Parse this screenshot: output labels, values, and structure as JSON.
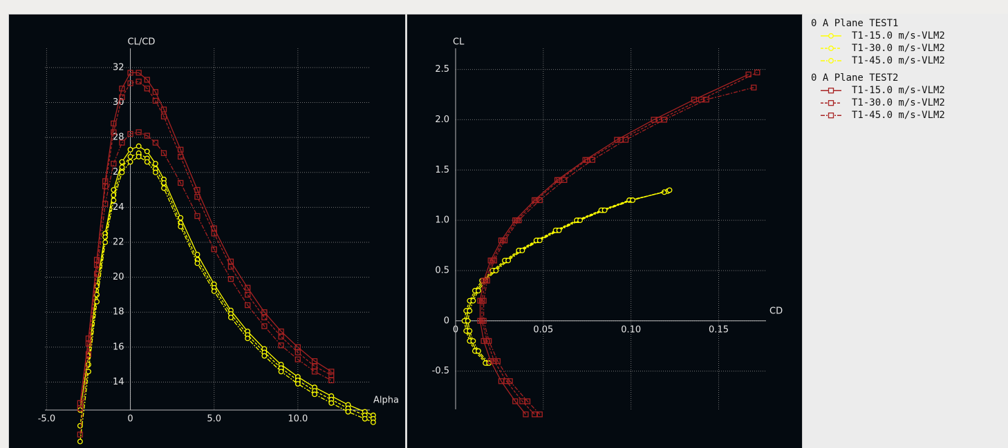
{
  "chart_data": [
    {
      "type": "line",
      "x_label": "Alpha",
      "y_label": "CL/CD",
      "x": [
        -3,
        -2.5,
        -2,
        -1.5,
        -1,
        -0.5,
        0,
        0.5,
        1,
        1.5,
        2,
        3,
        4,
        5,
        6,
        7,
        8,
        9,
        10,
        11,
        12,
        13,
        14,
        14.5
      ],
      "xlim": [
        -5.1,
        14.3
      ],
      "ylim": [
        12.4,
        33.1
      ],
      "xticks": [
        {
          "value": -5,
          "label": "-5.0"
        },
        0,
        {
          "value": 5,
          "label": "5.0"
        },
        {
          "value": 10,
          "label": "10.0"
        }
      ],
      "yticks": [
        14,
        16,
        18,
        20,
        22,
        24,
        26,
        28,
        30,
        32
      ],
      "grid": true,
      "series": [
        {
          "group": "0 A Plane TEST1",
          "name": "T1-15.0 m/s-VLM2",
          "color": "#ffff00",
          "dash": "solid",
          "marker": "circle",
          "values": [
            12.4,
            15.5,
            19.5,
            22.5,
            25.0,
            26.6,
            27.3,
            27.5,
            27.2,
            26.5,
            25.6,
            23.4,
            21.3,
            19.6,
            18.1,
            16.9,
            15.9,
            15.0,
            14.3,
            13.7,
            13.2,
            12.7,
            12.3,
            12.1
          ]
        },
        {
          "group": "0 A Plane TEST1",
          "name": "T1-30.0 m/s-VLM2",
          "color": "#ffff00",
          "dash": "dash",
          "marker": "circle",
          "values": [
            11.5,
            15.0,
            19.0,
            22.3,
            24.7,
            26.3,
            26.9,
            27.1,
            26.8,
            26.2,
            25.4,
            23.1,
            21.0,
            19.4,
            17.9,
            16.7,
            15.7,
            14.8,
            14.1,
            13.5,
            13.0,
            12.5,
            12.1,
            11.9
          ]
        },
        {
          "group": "0 A Plane TEST1",
          "name": "T1-45.0 m/s-VLM2",
          "color": "#ffff00",
          "dash": "dashdot",
          "marker": "circle",
          "values": [
            10.6,
            14.6,
            18.6,
            22.0,
            24.4,
            26.0,
            26.6,
            26.9,
            26.6,
            26.0,
            25.1,
            22.9,
            20.8,
            19.2,
            17.7,
            16.5,
            15.5,
            14.6,
            13.9,
            13.3,
            12.8,
            12.3,
            11.9,
            11.7
          ]
        },
        {
          "group": "0 A Plane TEST2",
          "name": "T1-15.0 m/s-VLM2",
          "color": "#a82222",
          "dash": "solid",
          "marker": "square",
          "values": [
            12.8,
            16.5,
            21.0,
            25.5,
            28.8,
            30.8,
            31.7,
            31.7,
            31.3,
            30.6,
            29.6,
            27.3,
            25.0,
            22.8,
            20.9,
            19.4,
            18.0,
            16.9,
            16.0,
            15.2,
            14.6,
            null,
            null,
            null
          ]
        },
        {
          "group": "0 A Plane TEST2",
          "name": "T1-30.0 m/s-VLM2",
          "color": "#a82222",
          "dash": "dash",
          "marker": "square",
          "values": [
            12.5,
            16.2,
            20.7,
            25.2,
            28.3,
            30.3,
            31.1,
            31.2,
            30.8,
            30.1,
            29.2,
            26.9,
            24.6,
            22.5,
            20.6,
            19.0,
            17.7,
            16.6,
            15.7,
            14.9,
            14.4,
            null,
            null,
            null
          ]
        },
        {
          "group": "0 A Plane TEST2",
          "name": "T1-45.0 m/s-VLM2",
          "color": "#a82222",
          "dash": "dashdot",
          "marker": "square",
          "values": [
            11.0,
            15.6,
            20.2,
            24.2,
            26.5,
            27.7,
            28.2,
            28.3,
            28.1,
            27.7,
            27.1,
            25.4,
            23.5,
            21.6,
            19.9,
            18.4,
            17.2,
            16.1,
            15.3,
            14.6,
            14.1,
            null,
            null,
            null
          ]
        }
      ]
    },
    {
      "type": "scatter-line",
      "x_label": "CD",
      "y_label": "CL",
      "xlim": [
        0,
        0.177
      ],
      "ylim": [
        -0.88,
        2.71
      ],
      "xticks": [
        0,
        0.05,
        {
          "value": 0.1,
          "label": "0.10"
        },
        0.15
      ],
      "yticks": [
        -0.5,
        0,
        0.5,
        {
          "value": 1,
          "label": "1.0"
        },
        1.5,
        {
          "value": 2,
          "label": "2.0"
        },
        2.5
      ],
      "grid": true,
      "series": [
        {
          "color": "#ffff00",
          "dash": "solid",
          "marker": "circle",
          "x": [
            0.018,
            0.012,
            0.009,
            0.007,
            0.006,
            0.007,
            0.009,
            0.012,
            0.016,
            0.022,
            0.029,
            0.037,
            0.047,
            0.058,
            0.07,
            0.084,
            0.1,
            0.121
          ],
          "values": [
            -0.42,
            -0.3,
            -0.2,
            -0.1,
            0,
            0.1,
            0.2,
            0.3,
            0.4,
            0.5,
            0.6,
            0.7,
            0.8,
            0.9,
            1.0,
            1.1,
            1.2,
            1.29
          ]
        },
        {
          "color": "#ffff00",
          "dash": "dash",
          "marker": "circle",
          "x": [
            0.017,
            0.011,
            0.008,
            0.006,
            0.005,
            0.006,
            0.008,
            0.011,
            0.015,
            0.021,
            0.028,
            0.036,
            0.046,
            0.057,
            0.069,
            0.083,
            0.099,
            0.119
          ],
          "values": [
            -0.42,
            -0.3,
            -0.2,
            -0.1,
            0,
            0.1,
            0.2,
            0.3,
            0.4,
            0.5,
            0.6,
            0.7,
            0.8,
            0.9,
            1.0,
            1.1,
            1.2,
            1.28
          ]
        },
        {
          "color": "#ffff00",
          "dash": "dashdot",
          "marker": "circle",
          "x": [
            0.019,
            0.013,
            0.01,
            0.008,
            0.007,
            0.008,
            0.01,
            0.013,
            0.017,
            0.023,
            0.03,
            0.038,
            0.048,
            0.059,
            0.071,
            0.085,
            0.101,
            0.122
          ],
          "values": [
            -0.42,
            -0.3,
            -0.2,
            -0.1,
            0,
            0.1,
            0.2,
            0.3,
            0.4,
            0.5,
            0.6,
            0.7,
            0.8,
            0.9,
            1.0,
            1.1,
            1.2,
            1.3
          ]
        },
        {
          "color": "#a82222",
          "dash": "solid",
          "marker": "square",
          "x": [
            0.04,
            0.034,
            0.026,
            0.02,
            0.016,
            0.014,
            0.014,
            0.016,
            0.02,
            0.026,
            0.034,
            0.045,
            0.058,
            0.074,
            0.092,
            0.113,
            0.136,
            0.167
          ],
          "values": [
            -0.93,
            -0.8,
            -0.6,
            -0.4,
            -0.2,
            0,
            0.2,
            0.4,
            0.6,
            0.8,
            1.0,
            1.2,
            1.4,
            1.6,
            1.8,
            2.0,
            2.2,
            2.45
          ]
        },
        {
          "color": "#a82222",
          "dash": "dash",
          "marker": "square",
          "x": [
            0.045,
            0.038,
            0.029,
            0.022,
            0.018,
            0.015,
            0.015,
            0.017,
            0.021,
            0.027,
            0.035,
            0.046,
            0.059,
            0.075,
            0.094,
            0.116,
            0.14,
            0.172
          ],
          "values": [
            -0.93,
            -0.8,
            -0.6,
            -0.4,
            -0.2,
            0,
            0.2,
            0.4,
            0.6,
            0.8,
            1.0,
            1.2,
            1.4,
            1.6,
            1.8,
            2.0,
            2.2,
            2.47
          ]
        },
        {
          "color": "#a82222",
          "dash": "dashdot",
          "marker": "square",
          "x": [
            0.048,
            0.041,
            0.031,
            0.024,
            0.019,
            0.016,
            0.016,
            0.018,
            0.022,
            0.028,
            0.036,
            0.048,
            0.062,
            0.078,
            0.097,
            0.119,
            0.143,
            0.17
          ],
          "values": [
            -0.93,
            -0.8,
            -0.6,
            -0.4,
            -0.2,
            0,
            0.2,
            0.4,
            0.6,
            0.8,
            1.0,
            1.2,
            1.4,
            1.6,
            1.8,
            2.0,
            2.2,
            2.32
          ]
        }
      ]
    }
  ]
}
